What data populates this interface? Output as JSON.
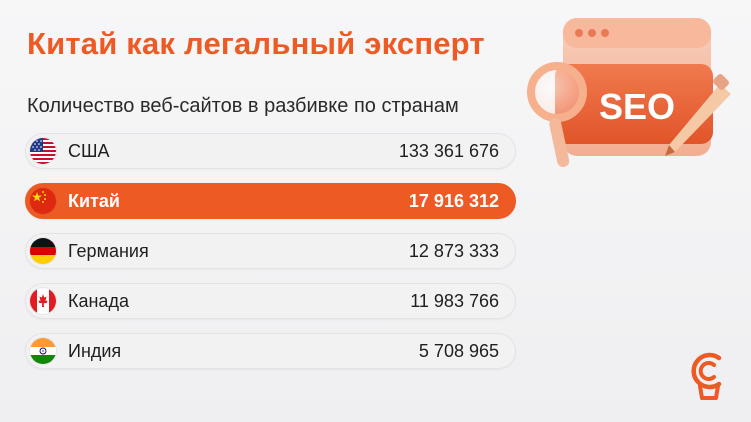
{
  "title": "Китай как легальный эксперт",
  "subtitle": "Количество веб-сайтов в разбивке по странам",
  "rows": [
    {
      "country": "США",
      "value": "133 361 676",
      "flag": "usa-flag-icon",
      "highlight": false
    },
    {
      "country": "Китай",
      "value": "17 916 312",
      "flag": "china-flag-icon",
      "highlight": true
    },
    {
      "country": "Германия",
      "value": "12 873 333",
      "flag": "germany-flag-icon",
      "highlight": false
    },
    {
      "country": "Канада",
      "value": "11 983 766",
      "flag": "canada-flag-icon",
      "highlight": false
    },
    {
      "country": "Индия",
      "value": "5 708 965",
      "flag": "india-flag-icon",
      "highlight": false
    }
  ],
  "illustration": {
    "label": "SEO",
    "icon": "seo-magnifier-pencil-icon"
  },
  "logo": {
    "icon": "brand-logo-icon"
  },
  "colors": {
    "accent": "#ee5a24",
    "text": "#1f1f1f",
    "row_bg": "#f2f2f3"
  }
}
